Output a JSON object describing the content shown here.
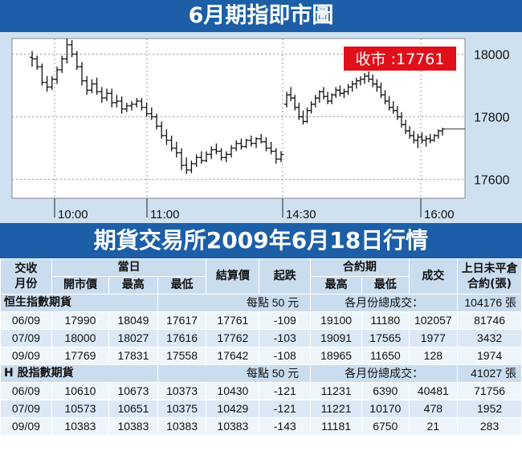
{
  "title": "6月期指即市圖",
  "subtitle": "期貨交易所2009年6月18日行情",
  "chart_data": {
    "type": "ohlc",
    "close_label": "收市 :17761",
    "x_ticks": [
      "10:00",
      "11:00",
      "14:30",
      "16:00"
    ],
    "y_ticks": [
      18000,
      17800,
      17600
    ],
    "ylim": [
      17540,
      18050
    ],
    "grid": true,
    "series": [
      {
        "o": 17990,
        "h": 18010,
        "l": 17960,
        "c": 17985
      },
      {
        "o": 17985,
        "h": 17995,
        "l": 17950,
        "c": 17960
      },
      {
        "o": 17960,
        "h": 17970,
        "l": 17900,
        "c": 17910
      },
      {
        "o": 17910,
        "h": 17930,
        "l": 17880,
        "c": 17895
      },
      {
        "o": 17895,
        "h": 17930,
        "l": 17885,
        "c": 17920
      },
      {
        "o": 17920,
        "h": 17960,
        "l": 17905,
        "c": 17950
      },
      {
        "o": 17950,
        "h": 17995,
        "l": 17940,
        "c": 17985
      },
      {
        "o": 17985,
        "h": 18049,
        "l": 17970,
        "c": 18030
      },
      {
        "o": 18030,
        "h": 18045,
        "l": 17990,
        "c": 18000
      },
      {
        "o": 18000,
        "h": 18010,
        "l": 17950,
        "c": 17960
      },
      {
        "o": 17960,
        "h": 17975,
        "l": 17900,
        "c": 17915
      },
      {
        "o": 17915,
        "h": 17930,
        "l": 17870,
        "c": 17885
      },
      {
        "o": 17885,
        "h": 17920,
        "l": 17875,
        "c": 17905
      },
      {
        "o": 17905,
        "h": 17925,
        "l": 17870,
        "c": 17880
      },
      {
        "o": 17880,
        "h": 17895,
        "l": 17845,
        "c": 17860
      },
      {
        "o": 17860,
        "h": 17890,
        "l": 17850,
        "c": 17875
      },
      {
        "o": 17875,
        "h": 17890,
        "l": 17830,
        "c": 17845
      },
      {
        "o": 17845,
        "h": 17870,
        "l": 17830,
        "c": 17850
      },
      {
        "o": 17850,
        "h": 17865,
        "l": 17810,
        "c": 17825
      },
      {
        "o": 17825,
        "h": 17845,
        "l": 17815,
        "c": 17835
      },
      {
        "o": 17835,
        "h": 17850,
        "l": 17820,
        "c": 17840
      },
      {
        "o": 17840,
        "h": 17860,
        "l": 17830,
        "c": 17850
      },
      {
        "o": 17850,
        "h": 17860,
        "l": 17820,
        "c": 17830
      },
      {
        "o": 17830,
        "h": 17845,
        "l": 17800,
        "c": 17810
      },
      {
        "o": 17810,
        "h": 17830,
        "l": 17790,
        "c": 17800
      },
      {
        "o": 17800,
        "h": 17810,
        "l": 17760,
        "c": 17770
      },
      {
        "o": 17770,
        "h": 17785,
        "l": 17730,
        "c": 17740
      },
      {
        "o": 17740,
        "h": 17760,
        "l": 17710,
        "c": 17725
      },
      {
        "o": 17725,
        "h": 17740,
        "l": 17690,
        "c": 17700
      },
      {
        "o": 17700,
        "h": 17720,
        "l": 17670,
        "c": 17685
      },
      {
        "o": 17685,
        "h": 17700,
        "l": 17630,
        "c": 17645
      },
      {
        "o": 17645,
        "h": 17670,
        "l": 17617,
        "c": 17630
      },
      {
        "o": 17630,
        "h": 17660,
        "l": 17620,
        "c": 17650
      },
      {
        "o": 17650,
        "h": 17680,
        "l": 17640,
        "c": 17670
      },
      {
        "o": 17670,
        "h": 17690,
        "l": 17650,
        "c": 17660
      },
      {
        "o": 17660,
        "h": 17690,
        "l": 17655,
        "c": 17680
      },
      {
        "o": 17680,
        "h": 17705,
        "l": 17665,
        "c": 17695
      },
      {
        "o": 17695,
        "h": 17715,
        "l": 17680,
        "c": 17690
      },
      {
        "o": 17690,
        "h": 17700,
        "l": 17660,
        "c": 17670
      },
      {
        "o": 17670,
        "h": 17690,
        "l": 17655,
        "c": 17680
      },
      {
        "o": 17680,
        "h": 17710,
        "l": 17670,
        "c": 17700
      },
      {
        "o": 17700,
        "h": 17725,
        "l": 17690,
        "c": 17715
      },
      {
        "o": 17715,
        "h": 17730,
        "l": 17695,
        "c": 17705
      },
      {
        "o": 17705,
        "h": 17730,
        "l": 17700,
        "c": 17725
      },
      {
        "o": 17725,
        "h": 17740,
        "l": 17705,
        "c": 17715
      },
      {
        "o": 17715,
        "h": 17735,
        "l": 17700,
        "c": 17730
      },
      {
        "o": 17730,
        "h": 17745,
        "l": 17715,
        "c": 17720
      },
      {
        "o": 17720,
        "h": 17735,
        "l": 17690,
        "c": 17700
      },
      {
        "o": 17700,
        "h": 17720,
        "l": 17680,
        "c": 17690
      },
      {
        "o": 17690,
        "h": 17700,
        "l": 17650,
        "c": 17665
      },
      {
        "o": 17665,
        "h": 17690,
        "l": 17655,
        "c": 17680
      },
      {
        "o": 17840,
        "h": 17880,
        "l": 17830,
        "c": 17870
      },
      {
        "o": 17870,
        "h": 17895,
        "l": 17850,
        "c": 17860
      },
      {
        "o": 17860,
        "h": 17870,
        "l": 17820,
        "c": 17830
      },
      {
        "o": 17830,
        "h": 17845,
        "l": 17790,
        "c": 17800
      },
      {
        "o": 17800,
        "h": 17820,
        "l": 17775,
        "c": 17785
      },
      {
        "o": 17785,
        "h": 17830,
        "l": 17780,
        "c": 17820
      },
      {
        "o": 17820,
        "h": 17850,
        "l": 17810,
        "c": 17840
      },
      {
        "o": 17840,
        "h": 17870,
        "l": 17830,
        "c": 17860
      },
      {
        "o": 17860,
        "h": 17885,
        "l": 17845,
        "c": 17880
      },
      {
        "o": 17880,
        "h": 17895,
        "l": 17855,
        "c": 17865
      },
      {
        "o": 17865,
        "h": 17880,
        "l": 17840,
        "c": 17850
      },
      {
        "o": 17850,
        "h": 17875,
        "l": 17840,
        "c": 17870
      },
      {
        "o": 17870,
        "h": 17895,
        "l": 17860,
        "c": 17885
      },
      {
        "o": 17885,
        "h": 17900,
        "l": 17865,
        "c": 17875
      },
      {
        "o": 17875,
        "h": 17890,
        "l": 17860,
        "c": 17880
      },
      {
        "o": 17880,
        "h": 17905,
        "l": 17870,
        "c": 17895
      },
      {
        "o": 17895,
        "h": 17915,
        "l": 17880,
        "c": 17905
      },
      {
        "o": 17905,
        "h": 17925,
        "l": 17890,
        "c": 17915
      },
      {
        "o": 17915,
        "h": 17930,
        "l": 17900,
        "c": 17920
      },
      {
        "o": 17920,
        "h": 17940,
        "l": 17905,
        "c": 17930
      },
      {
        "o": 17930,
        "h": 17945,
        "l": 17910,
        "c": 17920
      },
      {
        "o": 17920,
        "h": 17935,
        "l": 17895,
        "c": 17905
      },
      {
        "o": 17905,
        "h": 17920,
        "l": 17880,
        "c": 17895
      },
      {
        "o": 17895,
        "h": 17910,
        "l": 17860,
        "c": 17870
      },
      {
        "o": 17870,
        "h": 17885,
        "l": 17840,
        "c": 17850
      },
      {
        "o": 17850,
        "h": 17865,
        "l": 17820,
        "c": 17830
      },
      {
        "o": 17830,
        "h": 17850,
        "l": 17810,
        "c": 17820
      },
      {
        "o": 17820,
        "h": 17835,
        "l": 17790,
        "c": 17800
      },
      {
        "o": 17800,
        "h": 17815,
        "l": 17765,
        "c": 17775
      },
      {
        "o": 17775,
        "h": 17790,
        "l": 17745,
        "c": 17755
      },
      {
        "o": 17755,
        "h": 17770,
        "l": 17730,
        "c": 17740
      },
      {
        "o": 17740,
        "h": 17755,
        "l": 17715,
        "c": 17725
      },
      {
        "o": 17725,
        "h": 17745,
        "l": 17700,
        "c": 17735
      },
      {
        "o": 17735,
        "h": 17750,
        "l": 17715,
        "c": 17725
      },
      {
        "o": 17725,
        "h": 17740,
        "l": 17705,
        "c": 17730
      },
      {
        "o": 17730,
        "h": 17745,
        "l": 17715,
        "c": 17725
      },
      {
        "o": 17725,
        "h": 17745,
        "l": 17720,
        "c": 17740
      },
      {
        "o": 17740,
        "h": 17760,
        "l": 17730,
        "c": 17755
      },
      {
        "o": 17755,
        "h": 17765,
        "l": 17740,
        "c": 17761
      }
    ],
    "close": 17761,
    "close_line_end": 17761
  },
  "table": {
    "headers": {
      "month_top": "交收",
      "month_bottom": "月份",
      "today": "當日",
      "open": "開市價",
      "high": "最高",
      "low": "最低",
      "settle": "結算價",
      "change": "起跌",
      "contract": "合約期",
      "c_high": "最高",
      "c_low": "最低",
      "volume": "成交",
      "oi_top": "上日未平倉",
      "oi_bottom": "合約(張)"
    },
    "sections": [
      {
        "name": "恒生指數期貨",
        "per_point": "每點 50 元",
        "total_label": "各月份總成交：",
        "total_value": "104176 張",
        "rows": [
          [
            "06/09",
            "17990",
            "18049",
            "17617",
            "17761",
            "-109",
            "19100",
            "11180",
            "102057",
            "81746"
          ],
          [
            "07/09",
            "18000",
            "18027",
            "17616",
            "17762",
            "-103",
            "19091",
            "17565",
            "1977",
            "3432"
          ],
          [
            "09/09",
            "17769",
            "17831",
            "17558",
            "17642",
            "-108",
            "18965",
            "11650",
            "128",
            "1974"
          ]
        ]
      },
      {
        "name": "H 股指數期貨",
        "per_point": "每點 50 元",
        "total_label": "各月份總成交：",
        "total_value": "41027 張",
        "rows": [
          [
            "06/09",
            "10610",
            "10673",
            "10373",
            "10430",
            "-121",
            "11231",
            "6390",
            "40481",
            "71756"
          ],
          [
            "07/09",
            "10573",
            "10651",
            "10375",
            "10429",
            "-121",
            "11221",
            "10170",
            "478",
            "1952"
          ],
          [
            "09/09",
            "10383",
            "10383",
            "10383",
            "10383",
            "-143",
            "11181",
            "6750",
            "21",
            "283"
          ]
        ]
      }
    ]
  },
  "colors": {
    "header_blue": "#1c5fa6",
    "panel_blue": "#cfe1f0",
    "close_red": "#e0101a"
  }
}
